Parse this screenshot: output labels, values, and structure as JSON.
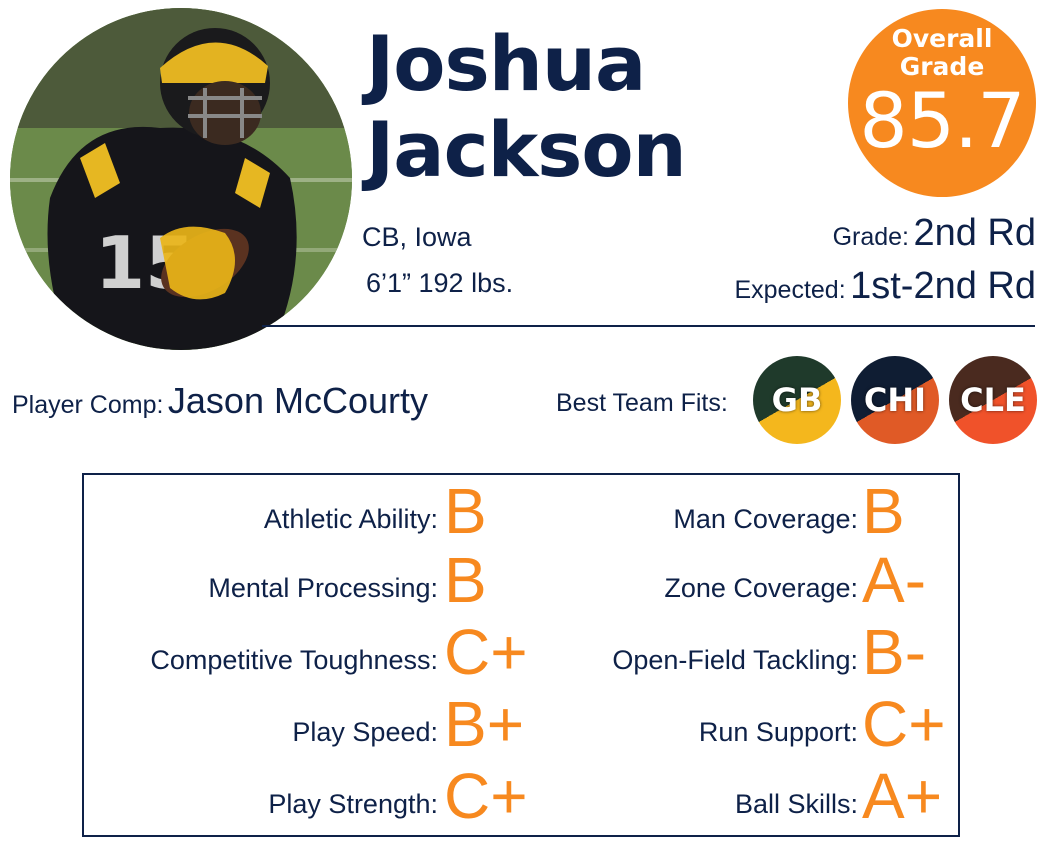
{
  "player": {
    "first_name": "Joshua",
    "last_name": "Jackson",
    "position_school": "CB, Iowa",
    "height_weight": "6’1” 192 lbs."
  },
  "overall": {
    "title": "Overall Grade",
    "value": "85.7"
  },
  "draft": {
    "grade_label": "Grade:",
    "grade_value": "2nd Rd",
    "expected_label": "Expected:",
    "expected_value": "1st-2nd Rd"
  },
  "comp": {
    "label": "Player Comp:",
    "value": "Jason McCourty"
  },
  "team_fits": {
    "label": "Best Team Fits:",
    "teams": [
      {
        "abbr": "GB",
        "colors": [
          "#1f3a2b",
          "#f4b71d"
        ]
      },
      {
        "abbr": "CHI",
        "colors": [
          "#0f1d33",
          "#e05a26"
        ]
      },
      {
        "abbr": "CLE",
        "colors": [
          "#4a2a1f",
          "#f0522a"
        ]
      }
    ]
  },
  "traits": {
    "left": [
      {
        "label": "Athletic Ability:",
        "grade": "B"
      },
      {
        "label": "Mental Processing:",
        "grade": "B"
      },
      {
        "label": "Competitive Toughness:",
        "grade": "C+"
      },
      {
        "label": "Play Speed:",
        "grade": "B+"
      },
      {
        "label": "Play Strength:",
        "grade": "C+"
      }
    ],
    "right": [
      {
        "label": "Man Coverage:",
        "grade": "B"
      },
      {
        "label": "Zone Coverage:",
        "grade": "A-"
      },
      {
        "label": "Open-Field Tackling:",
        "grade": "B-"
      },
      {
        "label": "Run Support:",
        "grade": "C+"
      },
      {
        "label": "Ball Skills:",
        "grade": "A+"
      }
    ]
  },
  "colors": {
    "navy": "#0e2148",
    "accent": "#f7891f"
  }
}
